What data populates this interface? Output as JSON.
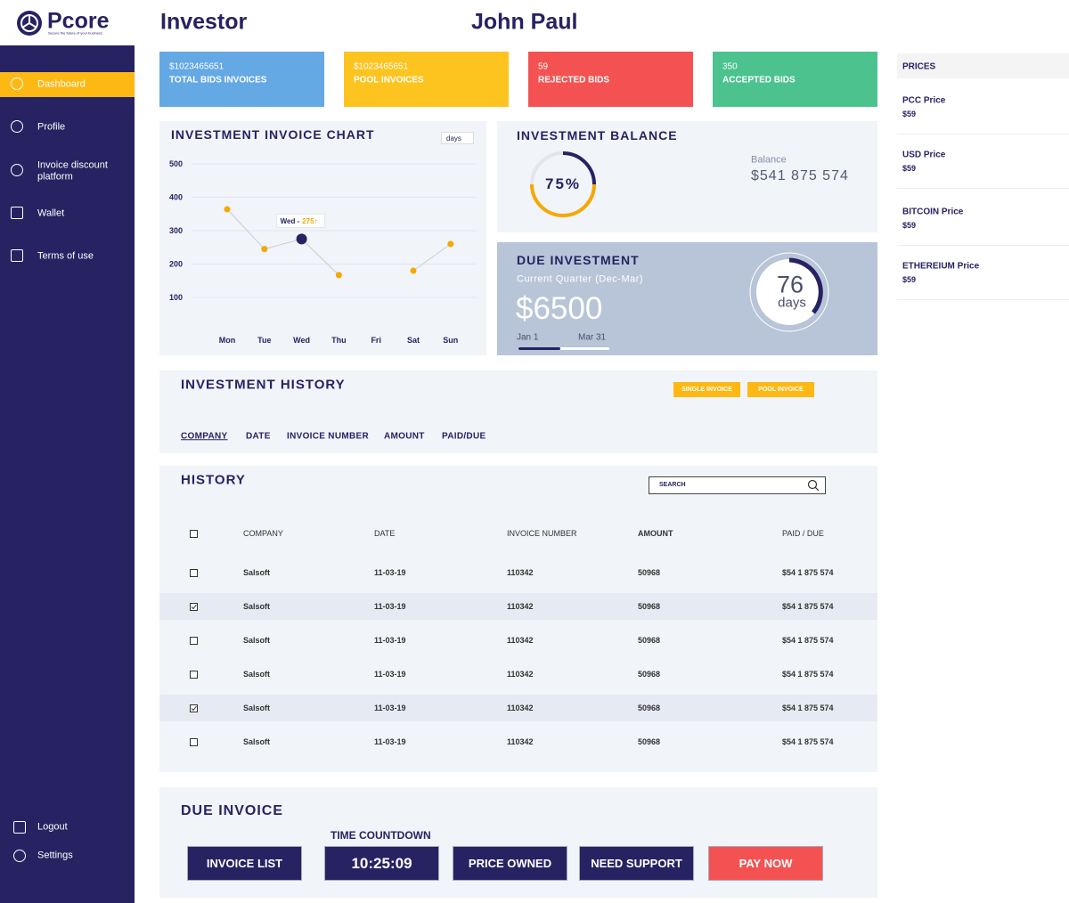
{
  "logo": {
    "name": "Pcore",
    "tagline": "Secure the future of your business"
  },
  "nav": [
    "Dashboard",
    "Profile",
    "Invoice discount platform",
    "Wallet",
    "Terms of use"
  ],
  "nav_bottom": [
    "Logout",
    "Settings"
  ],
  "header": {
    "title": "Investor",
    "user": "John Paul"
  },
  "stats": [
    {
      "value": "$1023465651",
      "label": "TOTAL BIDS INVOICES",
      "color": "#64a8e4"
    },
    {
      "value": "$1023465651",
      "label": "POOL INVOICES",
      "color": "#fdc41f"
    },
    {
      "value": "59",
      "label": "REJECTED BIDS",
      "color": "#f45252"
    },
    {
      "value": "350",
      "label": "ACCEPTED BIDS",
      "color": "#4cc28f"
    }
  ],
  "chart_data": {
    "type": "line",
    "title": "INVESTMENT INVOICE CHART",
    "dropdown": "days",
    "categories": [
      "Mon",
      "Tue",
      "Wed",
      "Thu",
      "Fri",
      "Sat",
      "Sun"
    ],
    "values": [
      364,
      245,
      275,
      167,
      null,
      180,
      260
    ],
    "color": "#f5a800",
    "highlight_color": "#272262",
    "ylim": [
      0,
      500
    ],
    "yticks": [
      100,
      200,
      300,
      400,
      500
    ],
    "grid": true,
    "annotation": {
      "label": "Wed -",
      "value": "275↑"
    }
  },
  "balance": {
    "title": "INVESTMENT BALANCE",
    "percent": "75%",
    "label": "Balance",
    "amount": "$541 875 574"
  },
  "due": {
    "title": "DUE INVESTMENT",
    "subtitle": "Current Quarter (Dec-Mar)",
    "amount": "$6500",
    "start": "Jan 1",
    "end": "Mar 31",
    "countdown": "76",
    "unit": "days"
  },
  "prices": {
    "title": "PRICES",
    "items": [
      {
        "name": "PCC Price",
        "value": "$59"
      },
      {
        "name": "USD Price",
        "value": "$59"
      },
      {
        "name": "BITCOIN Price",
        "value": "$59"
      },
      {
        "name": "ETHEREIUM Price",
        "value": "$59"
      }
    ]
  },
  "investment_history": {
    "title": "INVESTMENT HISTORY",
    "buttons": [
      "SINGLE INVOICE",
      "POOL INVOICE"
    ],
    "columns": [
      "COMPANY",
      "DATE",
      "INVOICE NUMBER",
      "AMOUNT",
      "PAID/DUE"
    ]
  },
  "history": {
    "title": "HISTORY",
    "search": "SEARCH",
    "columns": [
      "COMPANY",
      "DATE",
      "INVOICE NUMBER",
      "AMOUNT",
      "PAID / DUE"
    ],
    "rows": [
      {
        "company": "Salsoft",
        "date": "11-03-19",
        "invoice": "110342",
        "amount": "50968",
        "paid": "$54 1 875 574",
        "checked": false
      },
      {
        "company": "Salsoft",
        "date": "11-03-19",
        "invoice": "110342",
        "amount": "50968",
        "paid": "$54 1 875 574",
        "checked": true
      },
      {
        "company": "Salsoft",
        "date": "11-03-19",
        "invoice": "110342",
        "amount": "50968",
        "paid": "$54 1 875 574",
        "checked": false
      },
      {
        "company": "Salsoft",
        "date": "11-03-19",
        "invoice": "110342",
        "amount": "50968",
        "paid": "$54 1 875 574",
        "checked": false
      },
      {
        "company": "Salsoft",
        "date": "11-03-19",
        "invoice": "110342",
        "amount": "50968",
        "paid": "$54 1 875 574",
        "checked": true
      },
      {
        "company": "Salsoft",
        "date": "11-03-19",
        "invoice": "110342",
        "amount": "50968",
        "paid": "$54 1 875 574",
        "checked": false
      }
    ]
  },
  "due_invoice": {
    "title": "DUE INVOICE",
    "countdown_label": "TIME COUNTDOWN",
    "buttons": [
      "INVOICE LIST",
      "10:25:09",
      "PRICE OWNED",
      "NEED SUPPORT",
      "PAY NOW"
    ]
  }
}
